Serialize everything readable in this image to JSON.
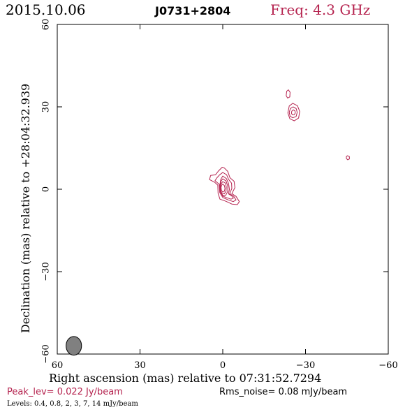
{
  "header": {
    "date": "2015.10.06",
    "source": "J0731+2804",
    "freq": "Freq: 4.3 GHz"
  },
  "footer": {
    "peak": "Peak_lev=  0.022 Jy/beam",
    "rms": "Rms_noise= 0.08 mJy/beam",
    "levels": "Levels: 0.4, 0.8,   2,   3,   7,  14 mJy/beam"
  },
  "colors": {
    "contour": "#b5234f",
    "peak_text": "#b5234f",
    "beam_fill": "#808080"
  },
  "chart_data": {
    "type": "contour",
    "xlabel": "Right ascension (mas) relative to 07:31:52.7294",
    "ylabel": "Declination (mas) relative to +28:04:32.939",
    "xlim": [
      60,
      -60
    ],
    "ylim": [
      -60,
      60
    ],
    "xticks": [
      60,
      30,
      0,
      -30,
      -60
    ],
    "yticks": [
      -60,
      -30,
      0,
      30,
      60
    ],
    "xtick_labels": [
      "60",
      "30",
      "0",
      "−30",
      "−60"
    ],
    "ytick_labels": [
      "−60",
      "−30",
      "0",
      "30",
      "60"
    ],
    "levels_mJy": [
      0.4,
      0.8,
      2,
      3,
      7,
      14
    ],
    "peak_Jy_per_beam": 0.022,
    "rms_mJy_per_beam": 0.08,
    "beam": {
      "x": 54,
      "y": -57,
      "major": 3.4,
      "minor": 2.8,
      "pa": 0
    },
    "components": [
      {
        "name": "core",
        "contours": [
          [
            [
              -0.5,
              7.8
            ],
            [
              -1.8,
              6.5
            ],
            [
              -2.6,
              4.2
            ],
            [
              -4.1,
              2.9
            ],
            [
              -4.4,
              0.6
            ],
            [
              -3.3,
              -1.6
            ],
            [
              -4.8,
              -2.6
            ],
            [
              -6.0,
              -4.5
            ],
            [
              -5.3,
              -5.6
            ],
            [
              -3.3,
              -5.4
            ],
            [
              -1.2,
              -4.4
            ],
            [
              1.0,
              -3.6
            ],
            [
              1.7,
              -1.5
            ],
            [
              1.8,
              1.5
            ],
            [
              3.0,
              2.6
            ],
            [
              4.8,
              3.5
            ],
            [
              4.4,
              5.0
            ],
            [
              2.6,
              5.3
            ],
            [
              1.6,
              6.6
            ],
            [
              0.2,
              8.0
            ]
          ],
          [
            [
              0.0,
              6.1
            ],
            [
              -1.4,
              5.3
            ],
            [
              -2.1,
              3.6
            ],
            [
              -3.2,
              2.2
            ],
            [
              -3.3,
              0.3
            ],
            [
              -2.5,
              -1.6
            ],
            [
              -4.0,
              -2.6
            ],
            [
              -4.8,
              -3.9
            ],
            [
              -3.8,
              -4.5
            ],
            [
              -2.0,
              -3.9
            ],
            [
              0.0,
              -3.0
            ],
            [
              1.1,
              -1.2
            ],
            [
              1.3,
              1.8
            ],
            [
              2.8,
              3.1
            ],
            [
              2.1,
              4.2
            ],
            [
              1.1,
              5.3
            ]
          ],
          [
            [
              0.0,
              4.8
            ],
            [
              -1.3,
              3.9
            ],
            [
              -2.1,
              2.1
            ],
            [
              -2.4,
              0.0
            ],
            [
              -2.1,
              -1.7
            ],
            [
              -3.2,
              -2.4
            ],
            [
              -3.9,
              -3.2
            ],
            [
              -3.0,
              -3.6
            ],
            [
              -1.5,
              -3.1
            ],
            [
              0.0,
              -2.5
            ],
            [
              1.0,
              -0.8
            ],
            [
              1.0,
              1.8
            ],
            [
              0.7,
              3.6
            ]
          ],
          [
            [
              0.0,
              3.8
            ],
            [
              -1.2,
              3.0
            ],
            [
              -1.8,
              1.2
            ],
            [
              -1.8,
              -0.8
            ],
            [
              -1.1,
              -2.2
            ],
            [
              0.0,
              -2.2
            ],
            [
              0.9,
              -0.6
            ],
            [
              0.9,
              1.4
            ],
            [
              0.6,
              3.0
            ]
          ],
          [
            [
              0.0,
              2.8
            ],
            [
              -1.0,
              2.2
            ],
            [
              -1.3,
              0.8
            ],
            [
              -1.2,
              -0.8
            ],
            [
              -0.5,
              -1.7
            ],
            [
              0.5,
              -1.2
            ],
            [
              0.8,
              0.3
            ],
            [
              0.7,
              1.8
            ]
          ],
          [
            [
              0.0,
              1.9
            ],
            [
              -0.6,
              1.3
            ],
            [
              -0.8,
              0.3
            ],
            [
              -0.6,
              -0.7
            ],
            [
              0.0,
              -1.0
            ],
            [
              0.5,
              -0.4
            ],
            [
              0.6,
              0.7
            ],
            [
              0.4,
              1.5
            ]
          ]
        ]
      },
      {
        "name": "jet-knot",
        "contours": [
          [
            [
              -25.4,
              31.3
            ],
            [
              -27.1,
              30.4
            ],
            [
              -27.9,
              28.3
            ],
            [
              -27.5,
              25.9
            ],
            [
              -25.9,
              24.9
            ],
            [
              -24.3,
              25.7
            ],
            [
              -23.6,
              27.8
            ],
            [
              -24.1,
              30.3
            ]
          ],
          [
            [
              -25.5,
              30.0
            ],
            [
              -26.6,
              29.4
            ],
            [
              -27.0,
              28.0
            ],
            [
              -26.6,
              26.5
            ],
            [
              -25.4,
              26.0
            ],
            [
              -24.4,
              26.6
            ],
            [
              -24.1,
              28.0
            ],
            [
              -24.5,
              29.4
            ]
          ],
          [
            [
              -25.6,
              28.9
            ],
            [
              -26.2,
              28.5
            ],
            [
              -26.3,
              27.8
            ],
            [
              -25.9,
              27.1
            ],
            [
              -25.2,
              27.1
            ],
            [
              -24.9,
              27.7
            ],
            [
              -25.0,
              28.4
            ]
          ]
        ]
      },
      {
        "name": "blob-n",
        "contours": [
          [
            [
              -23.8,
              36.2
            ],
            [
              -24.4,
              35.3
            ],
            [
              -24.3,
              33.6
            ],
            [
              -23.5,
              33.2
            ],
            [
              -23.0,
              34.1
            ],
            [
              -23.2,
              35.7
            ]
          ]
        ]
      },
      {
        "name": "blob-e",
        "contours": [
          [
            [
              -45.2,
              12.2
            ],
            [
              -45.9,
              11.9
            ],
            [
              -45.9,
              11.0
            ],
            [
              -45.3,
              10.7
            ],
            [
              -44.8,
              11.2
            ],
            [
              -44.8,
              11.9
            ]
          ]
        ]
      }
    ]
  }
}
